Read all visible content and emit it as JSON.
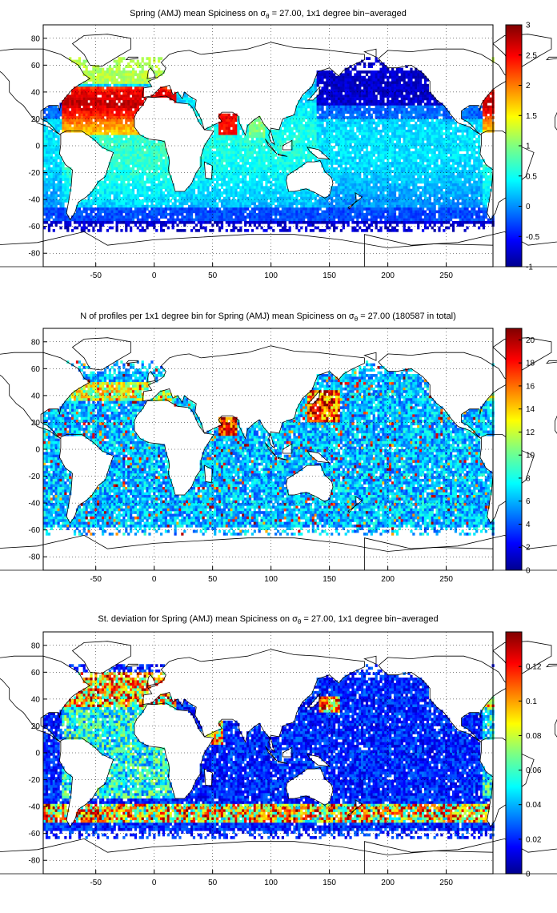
{
  "page": {
    "width": 696,
    "height": 1140
  },
  "chart_data": [
    {
      "type": "heatmap",
      "title": "Spring (AMJ) mean Spiciness on σ",
      "title_sub": "θ",
      "title_rest": " = 27.00, 1x1 degree bin−averaged",
      "xlim": [
        -95,
        290
      ],
      "ylim": [
        -90,
        90
      ],
      "xticks": [
        -50,
        0,
        50,
        100,
        150,
        200,
        250
      ],
      "yticks": [
        80,
        60,
        40,
        20,
        0,
        -20,
        -40,
        -60,
        -80
      ],
      "grid": true,
      "colorbar": {
        "min": -1,
        "max": 3,
        "ticks": [
          3,
          2.5,
          2,
          1.5,
          1,
          0.5,
          0,
          -0.5,
          -1
        ],
        "colormap": "jet"
      },
      "features": [
        "North Atlantic high spiciness ~2.0–2.5",
        "Mediterranean outflow ~3",
        "Arabian Sea ~2.5",
        "Bay of Bengal ~1.0",
        "North Pacific ~ -0.7",
        "Southern Ocean ~0"
      ]
    },
    {
      "type": "heatmap",
      "title": "N of profiles per 1x1 degree bin for Spring (AMJ) mean Spiciness on σ",
      "title_sub": "θ",
      "title_rest": " = 27.00 (180587 in total)",
      "xlim": [
        -95,
        290
      ],
      "ylim": [
        -90,
        90
      ],
      "xticks": [
        -50,
        0,
        50,
        100,
        150,
        200,
        250
      ],
      "yticks": [
        80,
        60,
        40,
        20,
        0,
        -20,
        -40,
        -60,
        -80
      ],
      "grid": true,
      "colorbar": {
        "min": 0,
        "max": 21,
        "ticks": [
          20,
          18,
          16,
          14,
          12,
          10,
          8,
          6,
          4,
          2,
          0
        ],
        "colormap": "jet"
      },
      "total_profiles": 180587
    },
    {
      "type": "heatmap",
      "title": "St. deviation for Spring (AMJ) mean Spiciness on σ",
      "title_sub": "θ",
      "title_rest": " = 27.00, 1x1 degree bin−averaged",
      "xlim": [
        -95,
        290
      ],
      "ylim": [
        -90,
        90
      ],
      "xticks": [
        -50,
        0,
        50,
        100,
        150,
        200,
        250
      ],
      "yticks": [
        80,
        60,
        40,
        20,
        0,
        -20,
        -40,
        -60,
        -80
      ],
      "grid": true,
      "colorbar": {
        "min": 0,
        "max": 0.14,
        "ticks": [
          0.12,
          0.1,
          0.08,
          0.06,
          0.04,
          0.02,
          0
        ],
        "colormap": "jet"
      }
    }
  ]
}
